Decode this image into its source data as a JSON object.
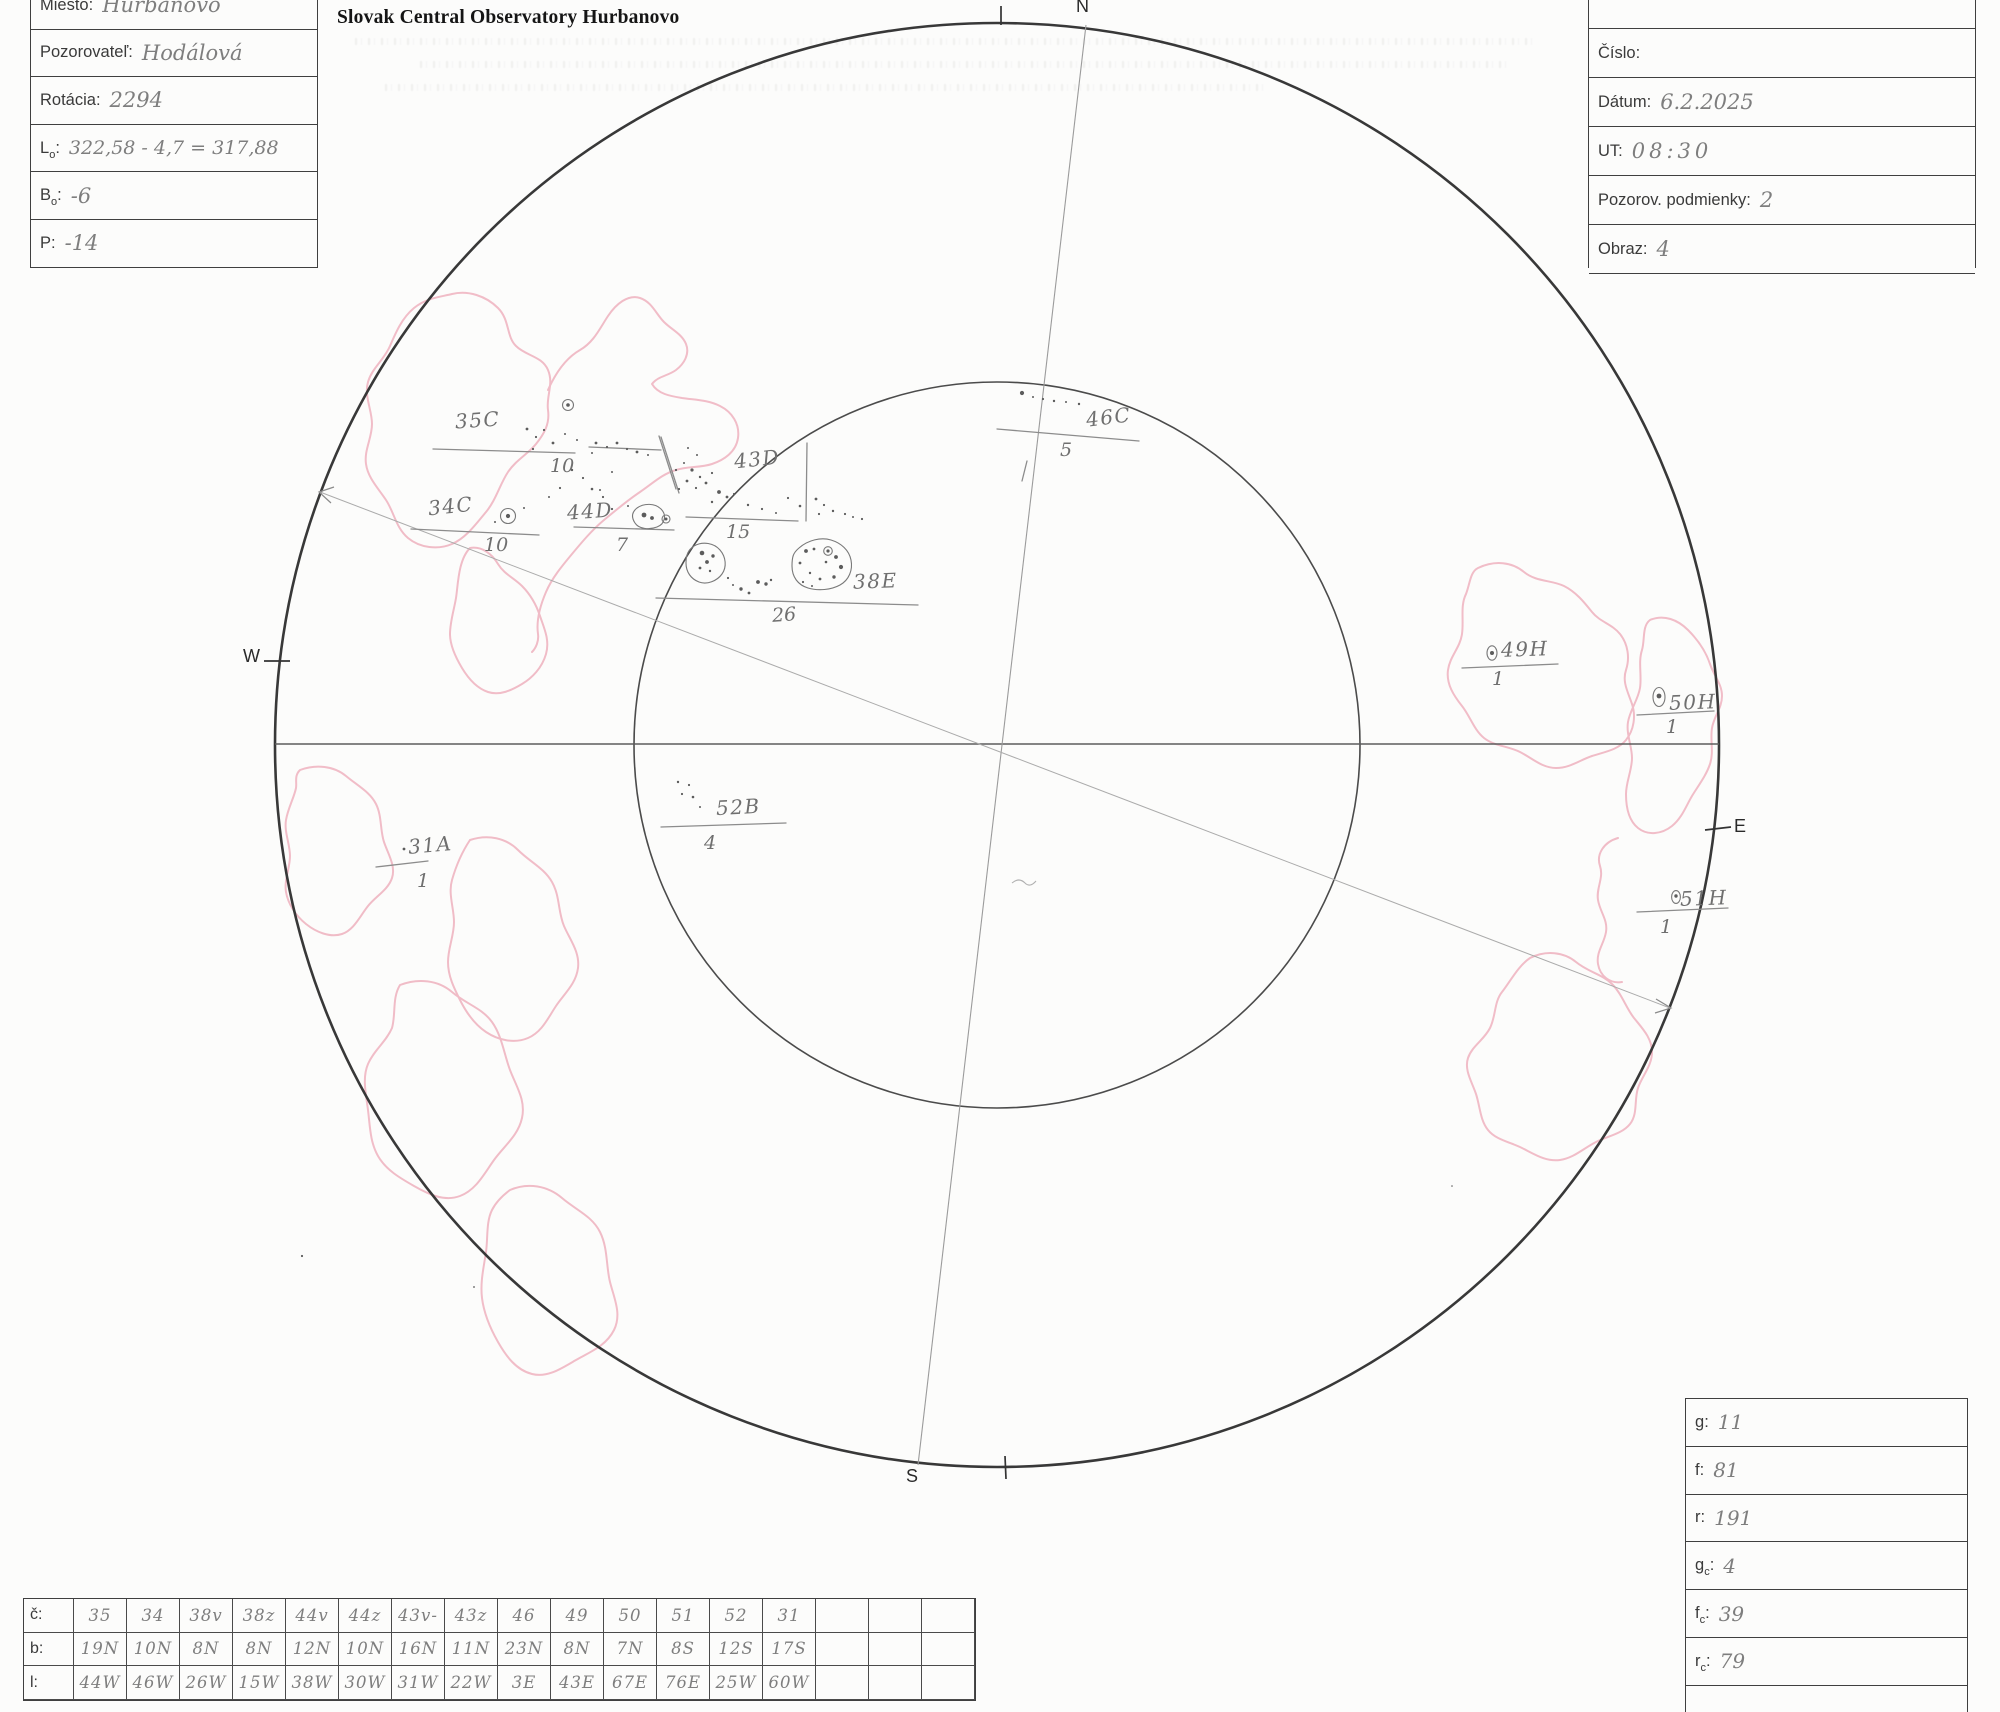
{
  "title": "Slovak Central Observatory Hurbanovo",
  "colors": {
    "pencil": "#6f6f6f",
    "ink": "#3a3a3a",
    "faculae_outline": "#efb2be",
    "paper": "#fcfcfb"
  },
  "left_form": {
    "fields": [
      {
        "label": "Miesto:",
        "value": "Hurbanovo"
      },
      {
        "label": "Pozorovateľ:",
        "value": "Hodálová"
      },
      {
        "label": "Rotácia:",
        "value": "2294"
      },
      {
        "label": "L",
        "sub": "o",
        "suffix": ":",
        "value": "322,58 - 4,7 = 317,88"
      },
      {
        "label": "B",
        "sub": "o",
        "suffix": ":",
        "value": "-6"
      },
      {
        "label": "P:",
        "value": "-14"
      }
    ]
  },
  "right_form": {
    "fields": [
      {
        "label": "Číslo:",
        "value": ""
      },
      {
        "label": "Dátum:",
        "value": "6.2.2025"
      },
      {
        "label": "UT:",
        "value": "08:30"
      },
      {
        "label": "Pozorov. podmienky:",
        "value": "2"
      },
      {
        "label": "Obraz:",
        "value": "4"
      }
    ]
  },
  "summary_form": {
    "fields": [
      {
        "label": "g",
        "suffix": ":",
        "value": "11"
      },
      {
        "label": "f",
        "suffix": ":",
        "value": "81"
      },
      {
        "label": "r",
        "suffix": ":",
        "value": "191"
      },
      {
        "label": "g",
        "sub": "c",
        "suffix": ":",
        "value": "4"
      },
      {
        "label": "f",
        "sub": "c",
        "suffix": ":",
        "value": "39"
      },
      {
        "label": "r",
        "sub": "c",
        "suffix": ":",
        "value": "79"
      }
    ]
  },
  "compass": {
    "north": "N",
    "south": "S",
    "east": "E",
    "west": "W"
  },
  "disk": {
    "groups": [
      {
        "label": "35C",
        "count": "10"
      },
      {
        "label": "34C",
        "count": "10"
      },
      {
        "label": "44D",
        "count": "7"
      },
      {
        "label": "43D",
        "count": "15"
      },
      {
        "label": "38E",
        "count": "26"
      },
      {
        "label": "46C",
        "count": "5"
      },
      {
        "label": "49H",
        "count": "1"
      },
      {
        "label": "50H",
        "count": "1"
      },
      {
        "label": "51H",
        "count": "1"
      },
      {
        "label": "52B",
        "count": "4"
      },
      {
        "label": "31A",
        "count": "1"
      }
    ]
  },
  "table": {
    "row_labels": [
      "č:",
      "b:",
      "l:"
    ],
    "columns": [
      {
        "c": "35",
        "b": "19N",
        "l": "44W"
      },
      {
        "c": "34",
        "b": "10N",
        "l": "46W"
      },
      {
        "c": "38v",
        "b": "8N",
        "l": "26W"
      },
      {
        "c": "38z",
        "b": "8N",
        "l": "15W"
      },
      {
        "c": "44v",
        "b": "12N",
        "l": "38W"
      },
      {
        "c": "44z",
        "b": "10N",
        "l": "30W"
      },
      {
        "c": "43v-",
        "b": "16N",
        "l": "31W"
      },
      {
        "c": "43z",
        "b": "11N",
        "l": "22W"
      },
      {
        "c": "46",
        "b": "23N",
        "l": "3E"
      },
      {
        "c": "49",
        "b": "8N",
        "l": "43E"
      },
      {
        "c": "50",
        "b": "7N",
        "l": "67E"
      },
      {
        "c": "51",
        "b": "8S",
        "l": "76E"
      },
      {
        "c": "52",
        "b": "12S",
        "l": "25W"
      },
      {
        "c": "31",
        "b": "17S",
        "l": "60W"
      },
      {
        "c": "",
        "b": "",
        "l": ""
      },
      {
        "c": "",
        "b": "",
        "l": ""
      },
      {
        "c": "",
        "b": "",
        "l": ""
      }
    ]
  }
}
